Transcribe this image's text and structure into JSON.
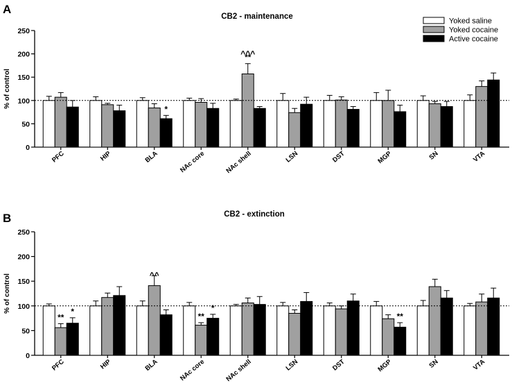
{
  "legend": [
    "Yoked saline",
    "Yoked cocaine",
    "Active cocaine"
  ],
  "colors": {
    "Yoked saline": "#ffffff",
    "Yoked cocaine": "#a0a0a0",
    "Active cocaine": "#000000"
  },
  "chart_data": [
    {
      "type": "bar",
      "panel": "A",
      "title": "CB2 - maintenance",
      "ylabel": "% of control",
      "xlabel": "",
      "ylim": [
        0,
        250
      ],
      "yticks": [
        0,
        50,
        100,
        150,
        200,
        250
      ],
      "reference_line": 100,
      "legend_position": "top-right",
      "categories": [
        "PFC",
        "HIP",
        "BLA",
        "NAc core",
        "NAc shell",
        "LSN",
        "DST",
        "MGP",
        "SN",
        "VTA"
      ],
      "series": [
        {
          "name": "Yoked saline",
          "values": [
            100,
            100,
            100,
            100,
            100,
            100,
            100,
            100,
            100,
            100
          ],
          "errors": [
            9,
            8,
            6,
            5,
            3,
            15,
            11,
            17,
            10,
            12
          ]
        },
        {
          "name": "Yoked cocaine",
          "values": [
            107,
            91,
            84,
            96,
            157,
            74,
            101,
            100,
            93,
            130
          ],
          "errors": [
            10,
            3,
            9,
            8,
            22,
            9,
            7,
            22,
            5,
            12
          ]
        },
        {
          "name": "Active cocaine",
          "values": [
            86,
            78,
            61,
            83,
            83,
            92,
            81,
            76,
            87,
            144
          ],
          "errors": [
            14,
            12,
            7,
            11,
            4,
            15,
            6,
            14,
            11,
            15
          ]
        }
      ],
      "annotations": [
        {
          "category": "BLA",
          "series": "Active cocaine",
          "text": "*"
        },
        {
          "category": "NAc shell",
          "series": "Yoked cocaine",
          "text": "**"
        },
        {
          "category": "NAc shell",
          "series": "Yoked cocaine",
          "text": "^^^"
        }
      ]
    },
    {
      "type": "bar",
      "panel": "B",
      "title": "CB2 - extinction",
      "ylabel": "% of control",
      "xlabel": "",
      "ylim": [
        0,
        250
      ],
      "yticks": [
        0,
        50,
        100,
        150,
        200,
        250
      ],
      "reference_line": 100,
      "categories": [
        "PFC",
        "HIP",
        "BLA",
        "NAc core",
        "NAc shell",
        "LSN",
        "DST",
        "MGP",
        "SN",
        "VTA"
      ],
      "series": [
        {
          "name": "Yoked saline",
          "values": [
            100,
            100,
            100,
            100,
            100,
            100,
            100,
            100,
            100,
            100
          ],
          "errors": [
            4,
            10,
            10,
            7,
            3,
            7,
            6,
            9,
            11,
            5
          ]
        },
        {
          "name": "Yoked cocaine",
          "values": [
            56,
            117,
            141,
            61,
            106,
            85,
            94,
            74,
            139,
            108
          ],
          "errors": [
            8,
            9,
            20,
            5,
            10,
            7,
            6,
            8,
            15,
            16
          ]
        },
        {
          "name": "Active cocaine",
          "values": [
            65,
            121,
            82,
            75,
            103,
            109,
            110,
            57,
            116,
            116
          ],
          "errors": [
            11,
            18,
            10,
            8,
            16,
            18,
            14,
            9,
            15,
            20
          ]
        }
      ],
      "annotations": [
        {
          "category": "PFC",
          "series": "Yoked cocaine",
          "text": "**"
        },
        {
          "category": "PFC",
          "series": "Active cocaine",
          "text": "*"
        },
        {
          "category": "BLA",
          "series": "Yoked cocaine",
          "text": "^^"
        },
        {
          "category": "NAc core",
          "series": "Yoked cocaine",
          "text": "**"
        },
        {
          "category": "NAc core",
          "series": "Active cocaine",
          "text": "*"
        },
        {
          "category": "MGP",
          "series": "Active cocaine",
          "text": "**"
        }
      ]
    }
  ]
}
